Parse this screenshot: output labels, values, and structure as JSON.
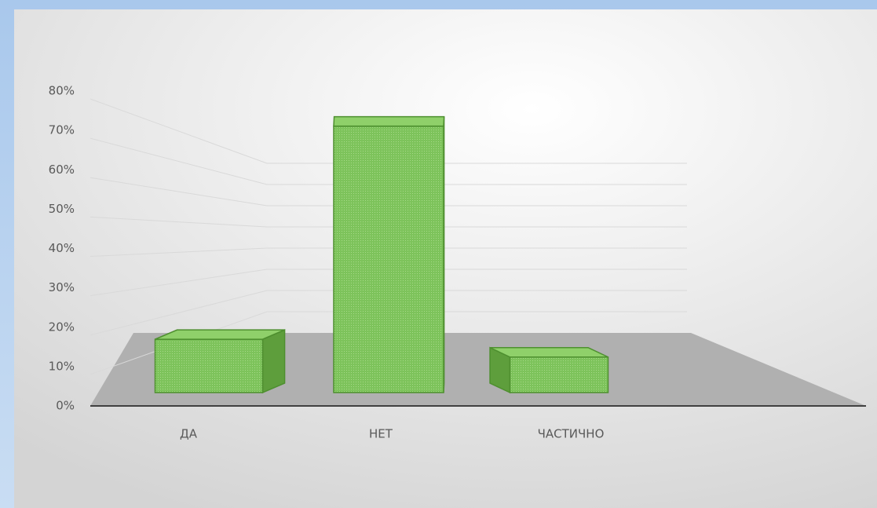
{
  "chart_data": {
    "type": "bar3d",
    "categories": [
      "ДА",
      "НЕТ",
      "ЧАСТИЧНО"
    ],
    "values": [
      15,
      75,
      10
    ],
    "color": "#7dc35b",
    "ylim": [
      0,
      80
    ],
    "yticks": [
      {
        "value": 0,
        "label": "0%"
      },
      {
        "value": 10,
        "label": "10%"
      },
      {
        "value": 20,
        "label": "20%"
      },
      {
        "value": 30,
        "label": "30%"
      },
      {
        "value": 40,
        "label": "40%"
      },
      {
        "value": 50,
        "label": "50%"
      },
      {
        "value": 60,
        "label": "60%"
      },
      {
        "value": 70,
        "label": "70%"
      },
      {
        "value": 80,
        "label": "80%"
      }
    ],
    "grid": true
  }
}
